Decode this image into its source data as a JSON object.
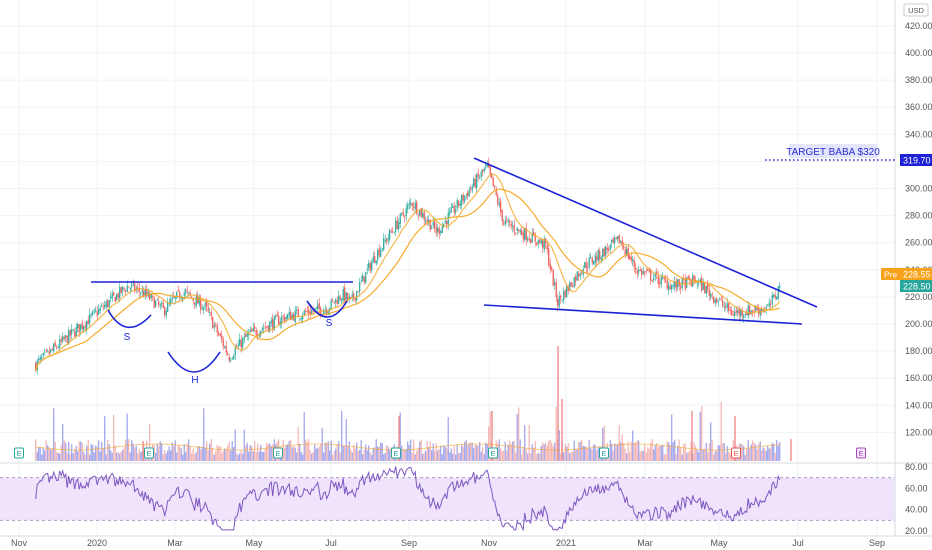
{
  "chart_data": {
    "type": "candlestick",
    "currency": "USD",
    "y_ticks": [
      "420.00",
      "400.00",
      "380.00",
      "360.00",
      "340.00",
      "320.00",
      "300.00",
      "280.00",
      "260.00",
      "240.00",
      "220.00",
      "200.00",
      "180.00",
      "160.00",
      "140.00",
      "120.00"
    ],
    "ylim": [
      110,
      430
    ],
    "x_ticks": [
      "Nov",
      "2020",
      "Mar",
      "May",
      "Jul",
      "Sep",
      "Nov",
      "2021",
      "Mar",
      "May",
      "Jul",
      "Sep"
    ],
    "price_path": [
      [
        "2019-10-15",
        170
      ],
      [
        "2019-12-31",
        228
      ],
      [
        "2020-01-15",
        222
      ],
      [
        "2020-01-30",
        210
      ],
      [
        "2020-02-15",
        224
      ],
      [
        "2020-03-05",
        212
      ],
      [
        "2020-03-25",
        176
      ],
      [
        "2020-04-10",
        192
      ],
      [
        "2020-05-10",
        205
      ],
      [
        "2020-06-15",
        212
      ],
      [
        "2020-06-28",
        222
      ],
      [
        "2020-07-05",
        216
      ],
      [
        "2020-07-25",
        250
      ],
      [
        "2020-08-25",
        290
      ],
      [
        "2020-09-15",
        268
      ],
      [
        "2020-10-27",
        316
      ],
      [
        "2020-11-10",
        275
      ],
      [
        "2020-12-15",
        258
      ],
      [
        "2020-12-25",
        216
      ],
      [
        "2021-01-15",
        242
      ],
      [
        "2021-02-15",
        262
      ],
      [
        "2021-03-01",
        240
      ],
      [
        "2021-04-01",
        228
      ],
      [
        "2021-04-20",
        232
      ],
      [
        "2021-05-20",
        208
      ],
      [
        "2021-06-20",
        212
      ],
      [
        "2021-06-29",
        228
      ]
    ],
    "last_price": 228.5,
    "premarket_price": 228.55,
    "annotations": {
      "target_label": "TARGET BABA $320",
      "target_price": "319.70",
      "pre_label": "Pre",
      "pre_price": "228.55",
      "last_price": "228.50",
      "pattern_labels": [
        "S",
        "H",
        "S"
      ]
    },
    "volume_earnings_markers": [
      "E",
      "E",
      "E",
      "E",
      "E",
      "E",
      "E",
      "E",
      "E",
      "E",
      "E",
      "E"
    ],
    "rsi_ticks": [
      "80.00",
      "60.00",
      "40.00",
      "20.00"
    ],
    "rsi_range": [
      20,
      82
    ],
    "rsi_bands": [
      30,
      70
    ],
    "rsi_last": 68
  },
  "colors": {
    "up": "#26a69a",
    "down": "#ef5350",
    "ma": "#f5a623",
    "trend": "#1d22d6",
    "target": "#2b2bd6",
    "rsi": "#7e57c2",
    "rsi_fill": "#efe4fb",
    "vol_up": "#8a8fe8",
    "vol_down": "#f2a5a5"
  }
}
